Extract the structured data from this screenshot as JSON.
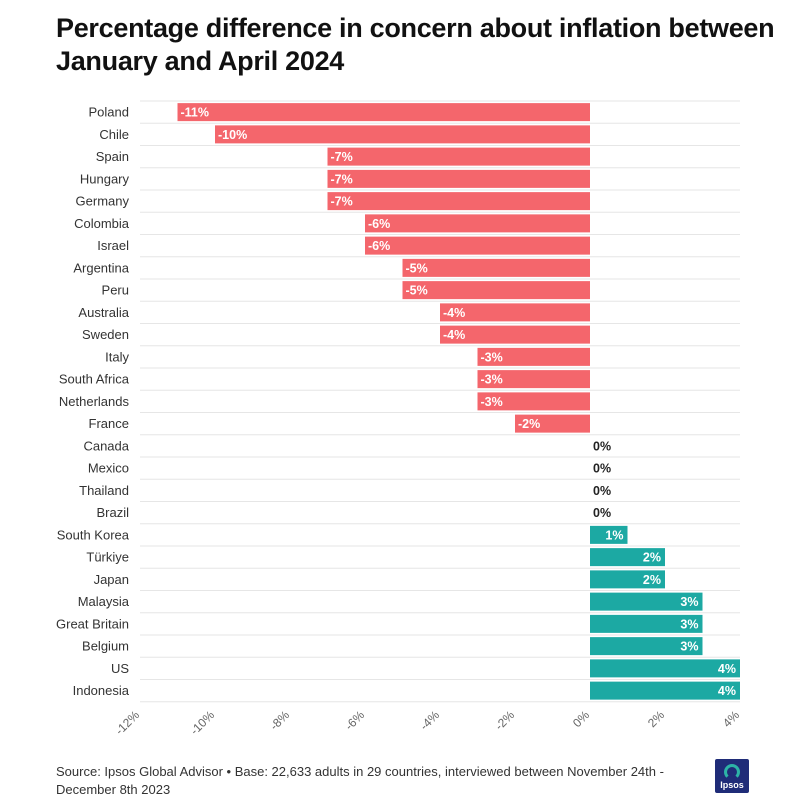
{
  "title": "Percentage difference in concern about inflation between January and April 2024",
  "source": "Source: Ipsos Global Advisor • Base: 22,633 adults in 29 countries, interviewed between November 24th - December 8th 2023",
  "logo_text": "Ipsos",
  "colors": {
    "negative": "#f4666c",
    "positive": "#1ca9a3",
    "grid": "#e6e6e6",
    "axis_text": "#666666",
    "label_text": "#333333"
  },
  "chart_data": {
    "type": "bar",
    "orientation": "horizontal",
    "title": "Percentage difference in concern about inflation between January and April 2024",
    "xlabel": "",
    "ylabel": "",
    "xlim": [
      -12,
      4
    ],
    "ticks": [
      -12,
      -10,
      -8,
      -6,
      -4,
      -2,
      0,
      2,
      4
    ],
    "tick_labels": [
      "-12%",
      "-10%",
      "-8%",
      "-6%",
      "-4%",
      "-2%",
      "0%",
      "2%",
      "4%"
    ],
    "categories": [
      "Poland",
      "Chile",
      "Spain",
      "Hungary",
      "Germany",
      "Colombia",
      "Israel",
      "Argentina",
      "Peru",
      "Australia",
      "Sweden",
      "Italy",
      "South Africa",
      "Netherlands",
      "France",
      "Canada",
      "Mexico",
      "Thailand",
      "Brazil",
      "South Korea",
      "Türkiye",
      "Japan",
      "Malaysia",
      "Great Britain",
      "Belgium",
      "US",
      "Indonesia"
    ],
    "values": [
      -11,
      -10,
      -7,
      -7,
      -7,
      -6,
      -6,
      -5,
      -5,
      -4,
      -4,
      -3,
      -3,
      -3,
      -2,
      0,
      0,
      0,
      0,
      1,
      2,
      2,
      3,
      3,
      3,
      4,
      4
    ],
    "value_labels": [
      "-11%",
      "-10%",
      "-7%",
      "-7%",
      "-7%",
      "-6%",
      "-6%",
      "-5%",
      "-5%",
      "-4%",
      "-4%",
      "-3%",
      "-3%",
      "-3%",
      "-2%",
      "0%",
      "0%",
      "0%",
      "0%",
      "1%",
      "2%",
      "2%",
      "3%",
      "3%",
      "3%",
      "4%",
      "4%"
    ]
  }
}
